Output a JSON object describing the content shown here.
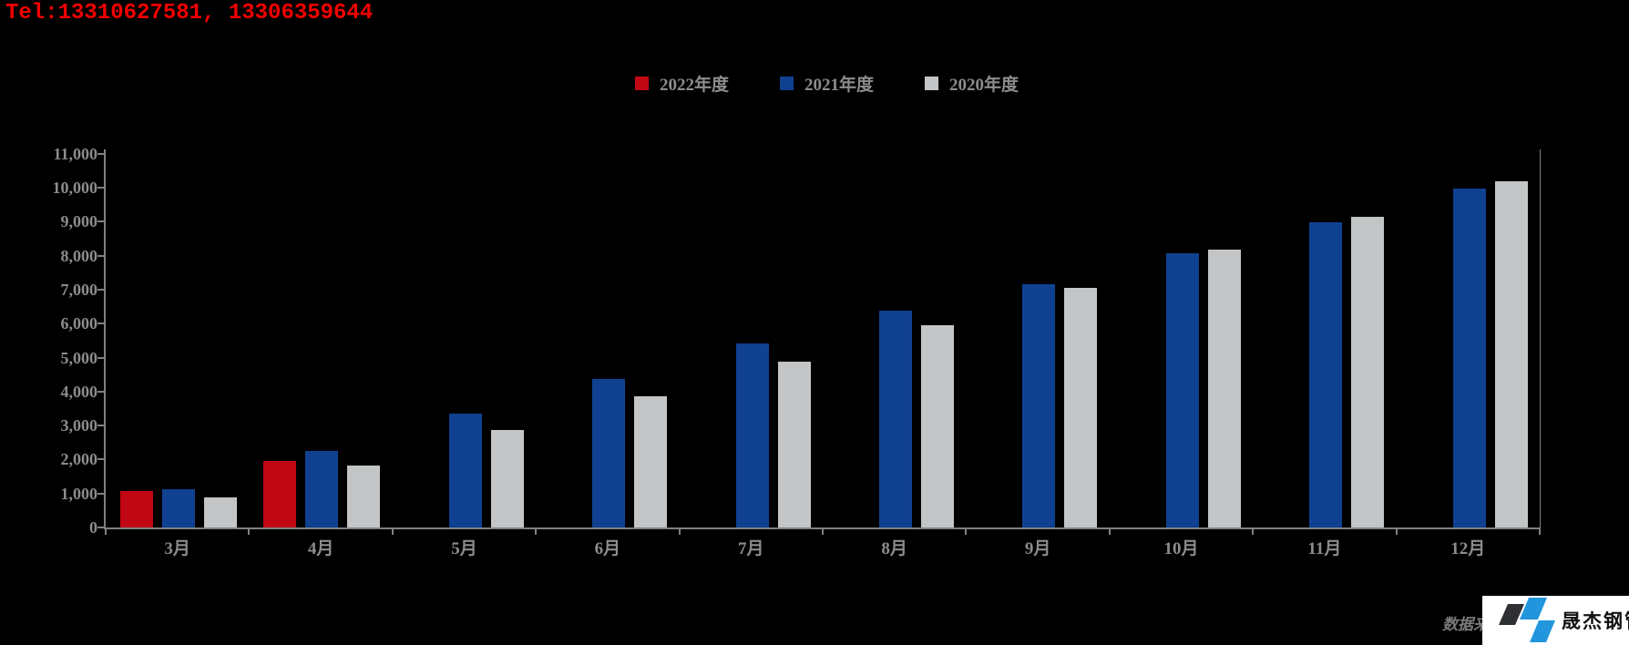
{
  "header": {
    "tel": "Tel:13310627581, 13306359644"
  },
  "footer": {
    "source_note": "数据来源:",
    "logo_text": "晟杰钢管",
    "logo_blue": "#2196dc",
    "logo_dark": "#2e3033"
  },
  "colors": {
    "background": "#000000",
    "axis": "#7d8182",
    "label_gray": "#8c8c8c",
    "tel_red": "#f40000"
  },
  "chart_data": {
    "type": "bar",
    "title": "",
    "xlabel": "",
    "ylabel": "",
    "grid": false,
    "legend_position": "top-center",
    "background": "#000000",
    "ylim": [
      0,
      11000
    ],
    "categories": [
      "3月",
      "4月",
      "5月",
      "6月",
      "7月",
      "8月",
      "9月",
      "10月",
      "11月",
      "12月"
    ],
    "series": [
      {
        "name": "2022年度",
        "color": "#c20714",
        "values": [
          1060,
          1960,
          null,
          null,
          null,
          null,
          null,
          null,
          null,
          null
        ]
      },
      {
        "name": "2021年度",
        "color": "#104191",
        "values": [
          1130,
          2250,
          3340,
          4370,
          5410,
          6380,
          7160,
          8080,
          8970,
          9980
        ]
      },
      {
        "name": "2020年度",
        "color": "#c3c5c6",
        "values": [
          880,
          1820,
          2860,
          3850,
          4870,
          5950,
          7050,
          8180,
          9140,
          10190
        ]
      }
    ],
    "y_ticks": [
      {
        "value": 0,
        "label": "0"
      },
      {
        "value": 1000,
        "label": "1,000"
      },
      {
        "value": 2000,
        "label": "2,000"
      },
      {
        "value": 3000,
        "label": "3,000"
      },
      {
        "value": 4000,
        "label": "4,000"
      },
      {
        "value": 5000,
        "label": "5,000"
      },
      {
        "value": 6000,
        "label": "6,000"
      },
      {
        "value": 7000,
        "label": "7,000"
      },
      {
        "value": 8000,
        "label": "8,000"
      },
      {
        "value": 9000,
        "label": "9,000"
      },
      {
        "value": 10000,
        "label": "10,000"
      },
      {
        "value": 11000,
        "label": "11,000"
      }
    ]
  }
}
